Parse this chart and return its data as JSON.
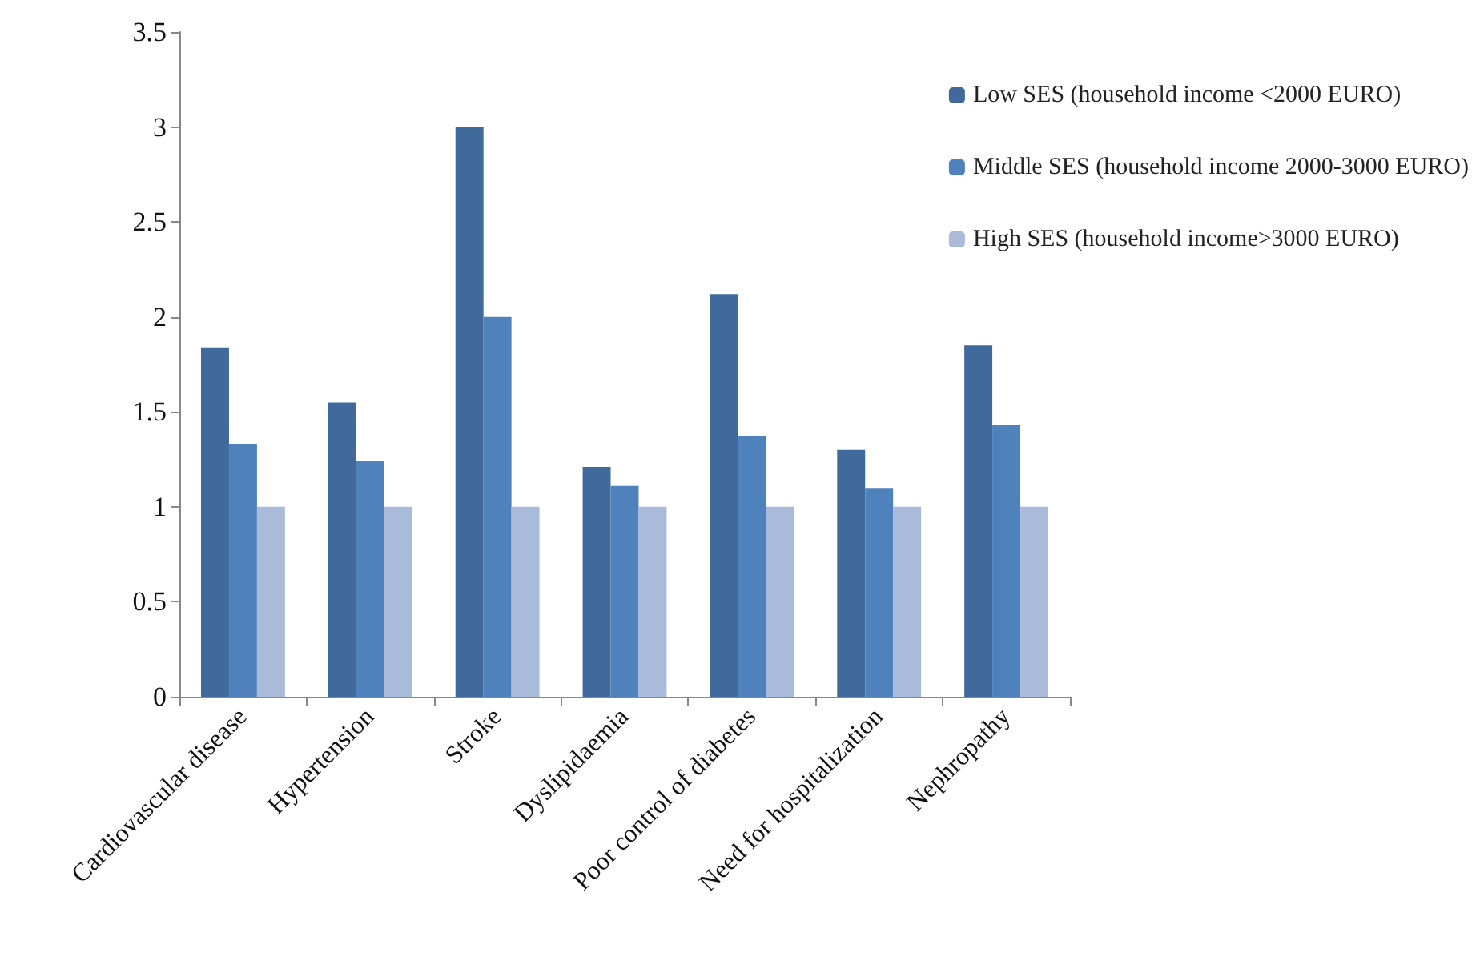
{
  "chart_data": {
    "type": "bar",
    "categories": [
      "Cardiovascular disease",
      "Hypertension",
      "Stroke",
      "Dyslipidaemia",
      "Poor control of diabetes",
      "Need for hospitalization",
      "Nephropathy"
    ],
    "series": [
      {
        "name": "Low SES (household income <2000 EURO)",
        "color": "#416a9c",
        "values": [
          1.84,
          1.55,
          3,
          1.21,
          2.12,
          1.3,
          1.85
        ]
      },
      {
        "name": "Middle SES (household income 2000-3000 EURO)",
        "color": "#4f81bd",
        "values": [
          1.33,
          1.24,
          2,
          1.11,
          1.37,
          1.1,
          1.43
        ]
      },
      {
        "name": "High SES (household income>3000 EURO)",
        "color": "#aabad9",
        "values": [
          1,
          1,
          1,
          1,
          1,
          1,
          1
        ]
      }
    ],
    "ylim": [
      0,
      3.5
    ],
    "yticks": [
      0,
      0.5,
      1,
      1.5,
      2,
      2.5,
      3,
      3.5
    ],
    "grid": false,
    "legend": "top right"
  }
}
